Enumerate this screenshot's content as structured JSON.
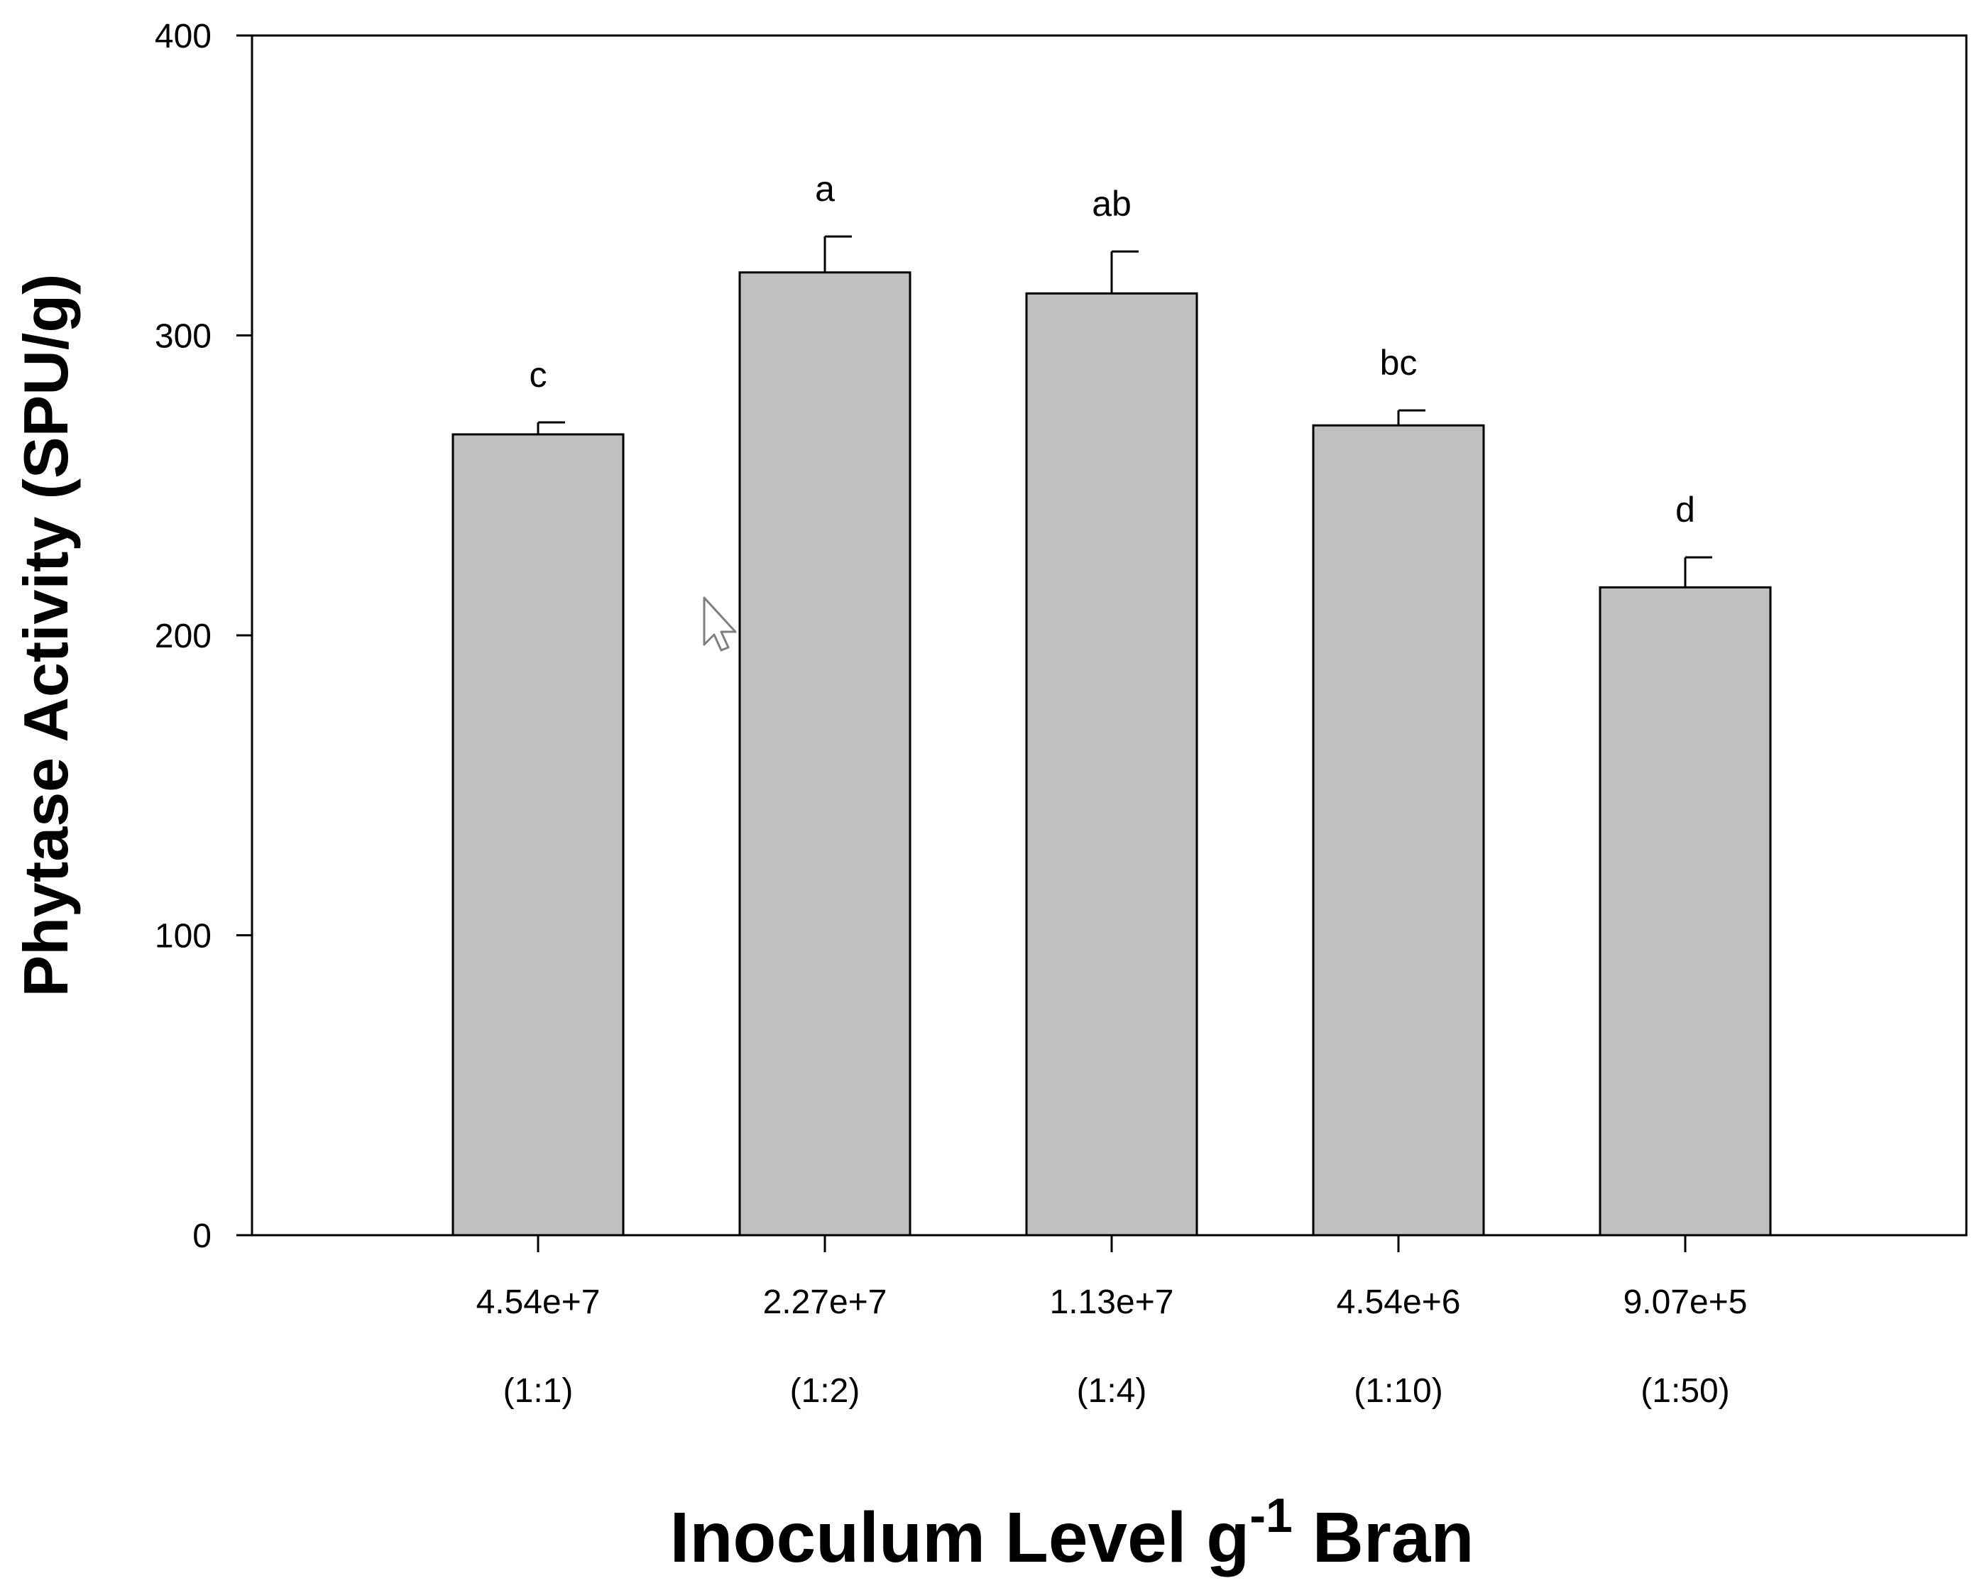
{
  "chart_data": {
    "type": "bar",
    "categories": [
      "4.54e+7",
      "2.27e+7",
      "1.13e+7",
      "4.54e+6",
      "9.07e+5"
    ],
    "category_sublabels": [
      "(1:1)",
      "(1:2)",
      "(1:4)",
      "(1:10)",
      "(1:50)"
    ],
    "values": [
      267,
      321,
      314,
      270,
      216
    ],
    "errors": [
      4,
      12,
      14,
      5,
      10
    ],
    "significance_labels": [
      "c",
      "a",
      "ab",
      "bc",
      "d"
    ],
    "ylabel": "Phytase Activity (SPU/g)",
    "xlabel": {
      "main": "Inoculum Level g",
      "superscript": "-1",
      "suffix": " Bran"
    },
    "ylim": [
      0,
      400
    ],
    "yticks": [
      0,
      100,
      200,
      300,
      400
    ],
    "bar_color": "#c0c0c0",
    "grid": false
  }
}
